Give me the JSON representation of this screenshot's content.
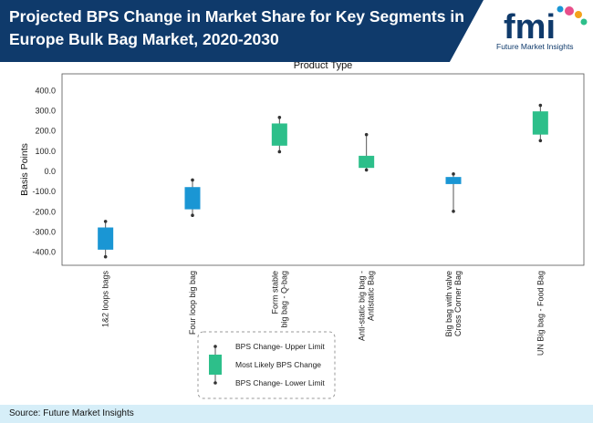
{
  "header": {
    "title_line1": "Projected BPS Change in Market Share for Key Segments in",
    "title_line2": "Europe Bulk Bag Market, 2020-2030",
    "logo_letters": "fmi",
    "logo_caption": "Future Market Insights"
  },
  "footer": {
    "source": "Source: Future Market Insights"
  },
  "colors": {
    "title_band": "#0f3a6b",
    "blue_box": "#1a96d4",
    "green_box": "#2dbf8a",
    "footer_band": "#d6eef8"
  },
  "chart_data": {
    "type": "box",
    "title": "Product Type",
    "xlabel": "",
    "ylabel": "Basis Points",
    "ylim": [
      -450,
      450
    ],
    "yticks": [
      400,
      300,
      200,
      100,
      0,
      -100,
      -200,
      -300,
      -400
    ],
    "ytick_labels": [
      "400.0",
      "300.0",
      "200.0",
      "100.0",
      "0.0",
      "-100.0",
      "-200.0",
      "-300.0",
      "-400.0"
    ],
    "grid": false,
    "categories": [
      "1&2 loops bags",
      "Four loop big bag",
      "Form stable big bag - Q-bag",
      "Anti-static big bag - Antistatic Bag",
      "Big bag with valve Cross Corner Bag",
      "UN Big bag - Food Bag"
    ],
    "category_lines": [
      [
        "1&2 loops bags"
      ],
      [
        "Four loop big bag"
      ],
      [
        "Form stable",
        "big bag - Q-bag"
      ],
      [
        "Anti-static big bag -",
        "Antistatic Bag"
      ],
      [
        "Big bag with valve",
        "Cross Corner Bag"
      ],
      [
        "UN Big bag - Food Bag"
      ]
    ],
    "series": [
      {
        "upper": -250,
        "box_high": -280,
        "box_low": -390,
        "lower": -425,
        "color": "#1a96d4"
      },
      {
        "upper": -45,
        "box_high": -80,
        "box_low": -190,
        "lower": -220,
        "color": "#1a96d4"
      },
      {
        "upper": 265,
        "box_high": 235,
        "box_low": 125,
        "lower": 95,
        "color": "#2dbf8a"
      },
      {
        "upper": 180,
        "box_high": 75,
        "box_low": 15,
        "lower": 5,
        "color": "#2dbf8a"
      },
      {
        "upper": -15,
        "box_high": -30,
        "box_low": -65,
        "lower": -200,
        "color": "#1a96d4"
      },
      {
        "upper": 325,
        "box_high": 295,
        "box_low": 180,
        "lower": 150,
        "color": "#2dbf8a"
      }
    ],
    "legend": {
      "position": "bottom",
      "items": [
        "BPS Change- Upper Limit",
        "Most Likely BPS Change",
        "BPS Change- Lower Limit"
      ]
    }
  }
}
